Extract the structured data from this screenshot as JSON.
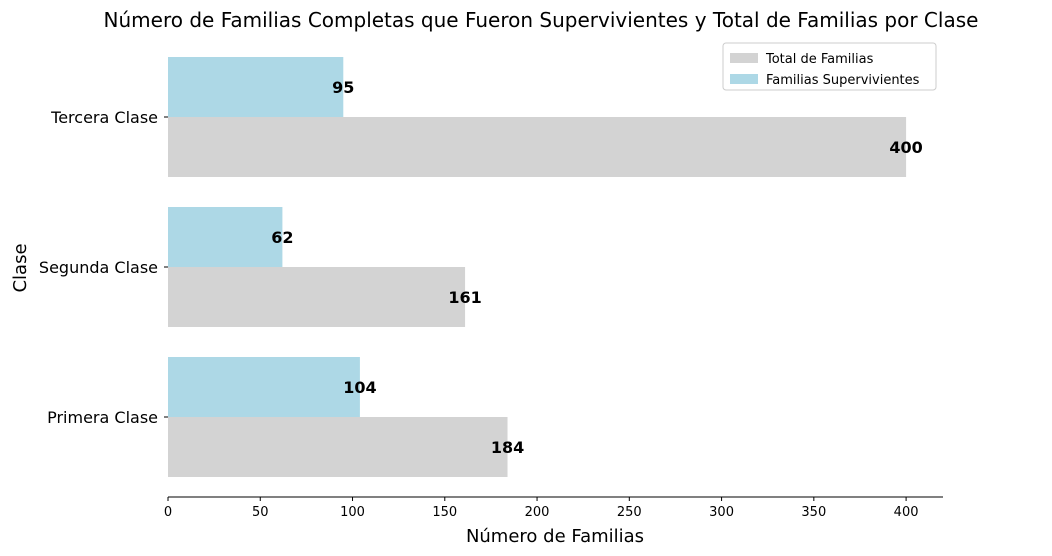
{
  "chart_data": {
    "type": "bar",
    "orientation": "horizontal",
    "title": "Número de Familias Completas que Fueron Supervivientes y Total de Familias por Clase",
    "xlabel": "Número de Familias",
    "ylabel": "Clase",
    "categories": [
      "Primera Clase",
      "Segunda Clase",
      "Tercera Clase"
    ],
    "series": [
      {
        "name": "Total de Familias",
        "values": [
          184,
          161,
          400
        ],
        "color": "#d3d3d3"
      },
      {
        "name": "Familias Supervivientes",
        "values": [
          104,
          62,
          95
        ],
        "color": "#add8e6"
      }
    ],
    "xlim": [
      0,
      420
    ],
    "xticks": [
      0,
      50,
      100,
      150,
      200,
      250,
      300,
      350,
      400
    ],
    "grid": false,
    "legend_position": "top-right"
  }
}
